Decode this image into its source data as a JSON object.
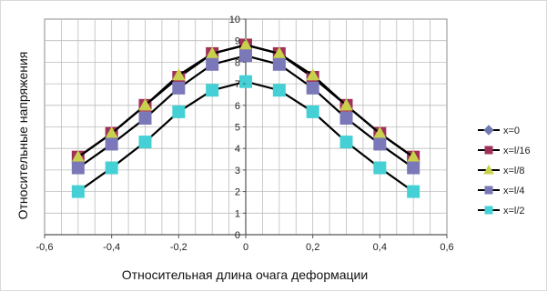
{
  "chart_data": {
    "type": "line",
    "xlabel": "Относительная длина очага деформации",
    "ylabel": "Относительные напряжения",
    "xlim": [
      -0.6,
      0.6
    ],
    "ylim": [
      0,
      10
    ],
    "x_ticks": [
      "-0,6",
      "-0,4",
      "-0,2",
      "0",
      "0,2",
      "0,4",
      "0,6"
    ],
    "y_ticks": [
      "0",
      "1",
      "2",
      "3",
      "4",
      "5",
      "6",
      "7",
      "8",
      "9",
      "10"
    ],
    "grid": true,
    "legend_position": "right",
    "x": [
      -0.5,
      -0.4,
      -0.3,
      -0.2,
      -0.1,
      0,
      0.1,
      0.2,
      0.3,
      0.4,
      0.5
    ],
    "series": [
      {
        "name": "x=0",
        "marker": "diamond",
        "color": "#7178ad",
        "values": [
          3.6,
          4.7,
          6.0,
          7.3,
          8.4,
          8.8,
          8.4,
          7.3,
          6.0,
          4.7,
          3.6
        ]
      },
      {
        "name": "x=l/16",
        "marker": "square",
        "color": "#a0305a",
        "values": [
          3.6,
          4.7,
          6.0,
          7.3,
          8.4,
          8.8,
          8.4,
          7.3,
          6.0,
          4.7,
          3.6
        ]
      },
      {
        "name": "x=l/8",
        "marker": "triangle",
        "color": "#c9d04c",
        "values": [
          3.6,
          4.7,
          6.0,
          7.4,
          8.4,
          8.8,
          8.4,
          7.4,
          6.0,
          4.7,
          3.6
        ]
      },
      {
        "name": "x=l/4",
        "marker": "square",
        "color": "#7a78b8",
        "values": [
          3.1,
          4.2,
          5.4,
          6.8,
          7.9,
          8.3,
          7.9,
          6.8,
          5.4,
          4.2,
          3.1
        ]
      },
      {
        "name": "x=l/2",
        "marker": "square",
        "color": "#44d0d4",
        "values": [
          2.0,
          3.1,
          4.3,
          5.7,
          6.7,
          7.1,
          6.7,
          5.7,
          4.3,
          3.1,
          2.0
        ]
      }
    ]
  }
}
